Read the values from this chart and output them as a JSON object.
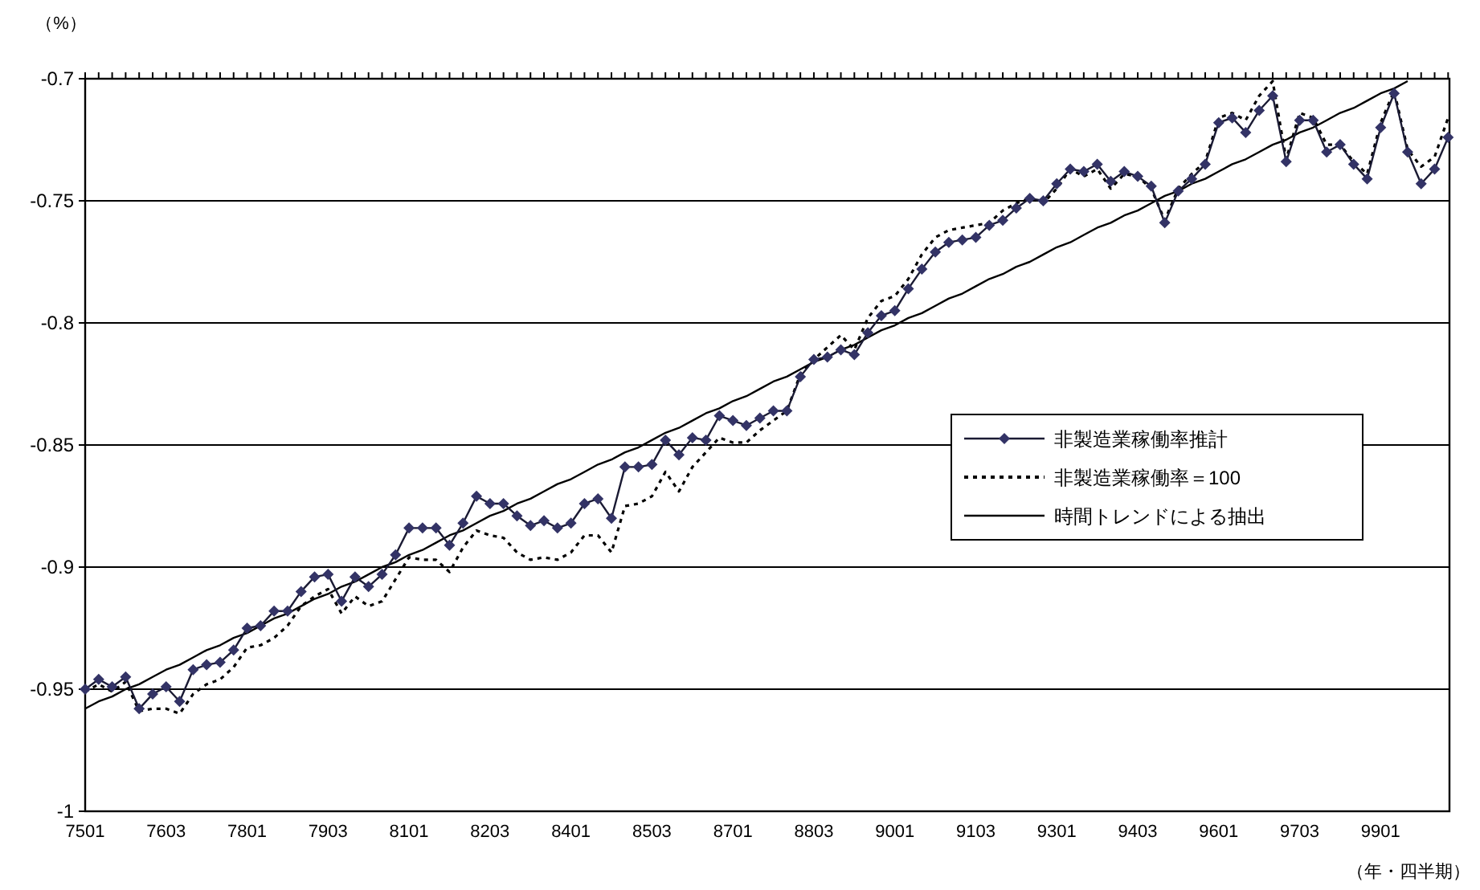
{
  "chart_data": {
    "type": "line",
    "ylabel": "（%）",
    "xlabel": "（年・四半期）",
    "categories": [
      "7501",
      null,
      null,
      null,
      null,
      null,
      "7603",
      null,
      null,
      null,
      null,
      null,
      "7801",
      null,
      null,
      null,
      null,
      null,
      "7903",
      null,
      null,
      null,
      null,
      null,
      "8101",
      null,
      null,
      null,
      null,
      null,
      "8203",
      null,
      null,
      null,
      null,
      null,
      "8401",
      null,
      null,
      null,
      null,
      null,
      "8503",
      null,
      null,
      null,
      null,
      null,
      "8701",
      null,
      null,
      null,
      null,
      null,
      "8803",
      null,
      null,
      null,
      null,
      null,
      "9001",
      null,
      null,
      null,
      null,
      null,
      "9103",
      null,
      null,
      null,
      null,
      null,
      "9301",
      null,
      null,
      null,
      null,
      null,
      "9403",
      null,
      null,
      null,
      null,
      null,
      "9601",
      null,
      null,
      null,
      null,
      null,
      "9703",
      null,
      null,
      null,
      null,
      null,
      "9901",
      null,
      null,
      null,
      null,
      null
    ],
    "ylim": [
      -1,
      -0.7
    ],
    "yticks": [
      -1,
      -0.95,
      -0.9,
      -0.85,
      -0.8,
      -0.75,
      -0.7
    ],
    "grid": "y",
    "legend": "right",
    "series": [
      {
        "name": "非製造業稼働率推計",
        "color": "#333366",
        "marker": "diamond",
        "line_style": "solid",
        "values": [
          -0.95,
          -0.946,
          -0.949,
          -0.945,
          -0.958,
          -0.952,
          -0.949,
          -0.955,
          -0.942,
          -0.94,
          -0.939,
          -0.934,
          -0.925,
          -0.924,
          -0.918,
          -0.918,
          -0.91,
          -0.904,
          -0.903,
          -0.914,
          -0.904,
          -0.908,
          -0.903,
          -0.895,
          -0.884,
          -0.884,
          -0.884,
          -0.891,
          -0.882,
          -0.871,
          -0.874,
          -0.874,
          -0.879,
          -0.883,
          -0.881,
          -0.884,
          -0.882,
          -0.874,
          -0.872,
          -0.88,
          -0.859,
          -0.859,
          -0.858,
          -0.848,
          -0.854,
          -0.847,
          -0.848,
          -0.838,
          -0.84,
          -0.842,
          -0.839,
          -0.836,
          -0.836,
          -0.822,
          -0.815,
          -0.814,
          -0.811,
          -0.813,
          -0.804,
          -0.797,
          -0.795,
          -0.786,
          -0.778,
          -0.771,
          -0.767,
          -0.766,
          -0.765,
          -0.76,
          -0.758,
          -0.753,
          -0.749,
          -0.75,
          -0.743,
          -0.737,
          -0.738,
          -0.735,
          -0.742,
          -0.738,
          -0.74,
          -0.744,
          -0.759,
          -0.746,
          -0.741,
          -0.735,
          -0.718,
          -0.716,
          -0.722,
          -0.713,
          -0.707,
          -0.734,
          -0.717,
          -0.717,
          -0.73,
          -0.727,
          -0.735,
          -0.741,
          -0.72,
          -0.706,
          -0.73,
          -0.743,
          -0.737,
          -0.724
        ]
      },
      {
        "name": "非製造業稼働率＝100",
        "color": "#000000",
        "marker": "none",
        "line_style": "dotted",
        "values": [
          -0.951,
          -0.948,
          -0.951,
          -0.947,
          -0.959,
          -0.958,
          -0.958,
          -0.96,
          -0.952,
          -0.948,
          -0.946,
          -0.941,
          -0.933,
          -0.932,
          -0.929,
          -0.924,
          -0.916,
          -0.912,
          -0.909,
          -0.919,
          -0.912,
          -0.916,
          -0.914,
          -0.905,
          -0.896,
          -0.897,
          -0.897,
          -0.902,
          -0.892,
          -0.885,
          -0.887,
          -0.888,
          -0.894,
          -0.897,
          -0.896,
          -0.897,
          -0.894,
          -0.887,
          -0.887,
          -0.894,
          -0.875,
          -0.874,
          -0.871,
          -0.861,
          -0.869,
          -0.859,
          -0.853,
          -0.847,
          -0.849,
          -0.849,
          -0.844,
          -0.84,
          -0.836,
          -0.821,
          -0.815,
          -0.81,
          -0.805,
          -0.811,
          -0.798,
          -0.791,
          -0.789,
          -0.782,
          -0.772,
          -0.765,
          -0.762,
          -0.761,
          -0.76,
          -0.759,
          -0.754,
          -0.751,
          -0.749,
          -0.751,
          -0.745,
          -0.737,
          -0.74,
          -0.737,
          -0.745,
          -0.739,
          -0.74,
          -0.745,
          -0.758,
          -0.745,
          -0.739,
          -0.734,
          -0.716,
          -0.714,
          -0.717,
          -0.707,
          -0.701,
          -0.733,
          -0.714,
          -0.716,
          -0.727,
          -0.727,
          -0.734,
          -0.739,
          -0.718,
          -0.705,
          -0.729,
          -0.736,
          -0.732,
          -0.716
        ]
      },
      {
        "name": "時間トレンドによる抽出",
        "color": "#000000",
        "marker": "none",
        "line_style": "solid",
        "values": [
          -0.958,
          -0.955,
          -0.953,
          -0.95,
          -0.948,
          -0.945,
          -0.942,
          -0.94,
          -0.937,
          -0.934,
          -0.932,
          -0.929,
          -0.927,
          -0.924,
          -0.921,
          -0.919,
          -0.916,
          -0.913,
          -0.911,
          -0.908,
          -0.906,
          -0.903,
          -0.9,
          -0.898,
          -0.895,
          -0.893,
          -0.89,
          -0.887,
          -0.885,
          -0.882,
          -0.879,
          -0.877,
          -0.874,
          -0.872,
          -0.869,
          -0.866,
          -0.864,
          -0.861,
          -0.858,
          -0.856,
          -0.853,
          -0.851,
          -0.848,
          -0.845,
          -0.843,
          -0.84,
          -0.837,
          -0.835,
          -0.832,
          -0.83,
          -0.827,
          -0.824,
          -0.822,
          -0.819,
          -0.816,
          -0.814,
          -0.811,
          -0.809,
          -0.806,
          -0.803,
          -0.801,
          -0.798,
          -0.796,
          -0.793,
          -0.79,
          -0.788,
          -0.785,
          -0.782,
          -0.78,
          -0.777,
          -0.775,
          -0.772,
          -0.769,
          -0.767,
          -0.764,
          -0.761,
          -0.759,
          -0.756,
          -0.754,
          -0.751,
          -0.748,
          -0.746,
          -0.743,
          -0.741,
          -0.738,
          -0.735,
          -0.733,
          -0.73,
          -0.727,
          -0.725,
          -0.722,
          -0.72,
          -0.717,
          -0.714,
          -0.712,
          -0.709,
          -0.706,
          -0.704,
          -0.701,
          null,
          null,
          null
        ]
      }
    ]
  }
}
